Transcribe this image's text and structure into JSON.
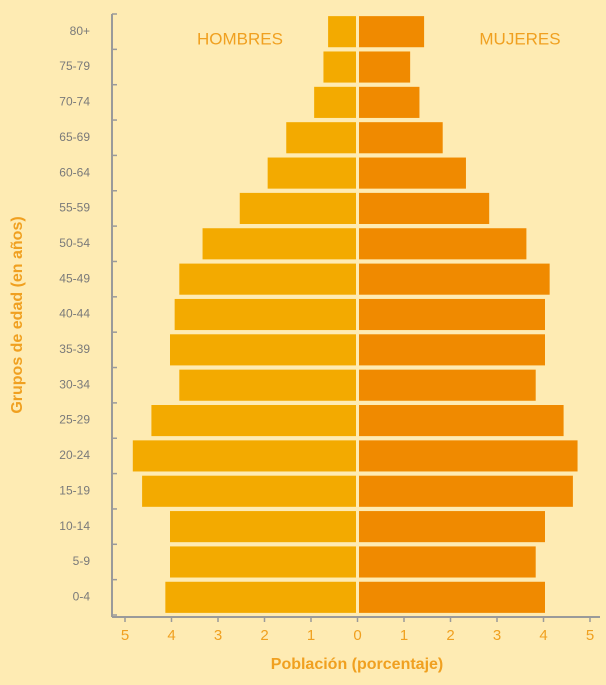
{
  "chart_data": {
    "type": "pyramid",
    "y_label": "Grupos de edad (en años)",
    "x_label": "Población (porcentaje)",
    "categories": [
      "0-4",
      "5-9",
      "10-14",
      "15-19",
      "20-24",
      "25-29",
      "30-34",
      "35-39",
      "40-44",
      "45-49",
      "50-54",
      "55-59",
      "60-64",
      "65-69",
      "70-74",
      "75-79",
      "80+"
    ],
    "series": [
      {
        "name": "HOMBRES",
        "color": "#f3aa00",
        "side": "left",
        "values": [
          4.1,
          4.0,
          4.0,
          4.6,
          4.8,
          4.4,
          3.8,
          4.0,
          3.9,
          3.8,
          3.3,
          2.5,
          1.9,
          1.5,
          0.9,
          0.7,
          0.6
        ]
      },
      {
        "name": "MUJERES",
        "color": "#f08a00",
        "side": "right",
        "values": [
          4.0,
          3.8,
          4.0,
          4.6,
          4.7,
          4.4,
          3.8,
          4.0,
          4.0,
          4.1,
          3.6,
          2.8,
          2.3,
          1.8,
          1.3,
          1.1,
          1.4
        ]
      }
    ],
    "xlim": [
      -5,
      5
    ],
    "xticks": [
      {
        "value": -5,
        "label": "5"
      },
      {
        "value": -4,
        "label": "4"
      },
      {
        "value": -3,
        "label": "3"
      },
      {
        "value": -2,
        "label": "2"
      },
      {
        "value": -1,
        "label": "1"
      },
      0,
      1,
      2,
      3,
      4,
      5
    ]
  }
}
